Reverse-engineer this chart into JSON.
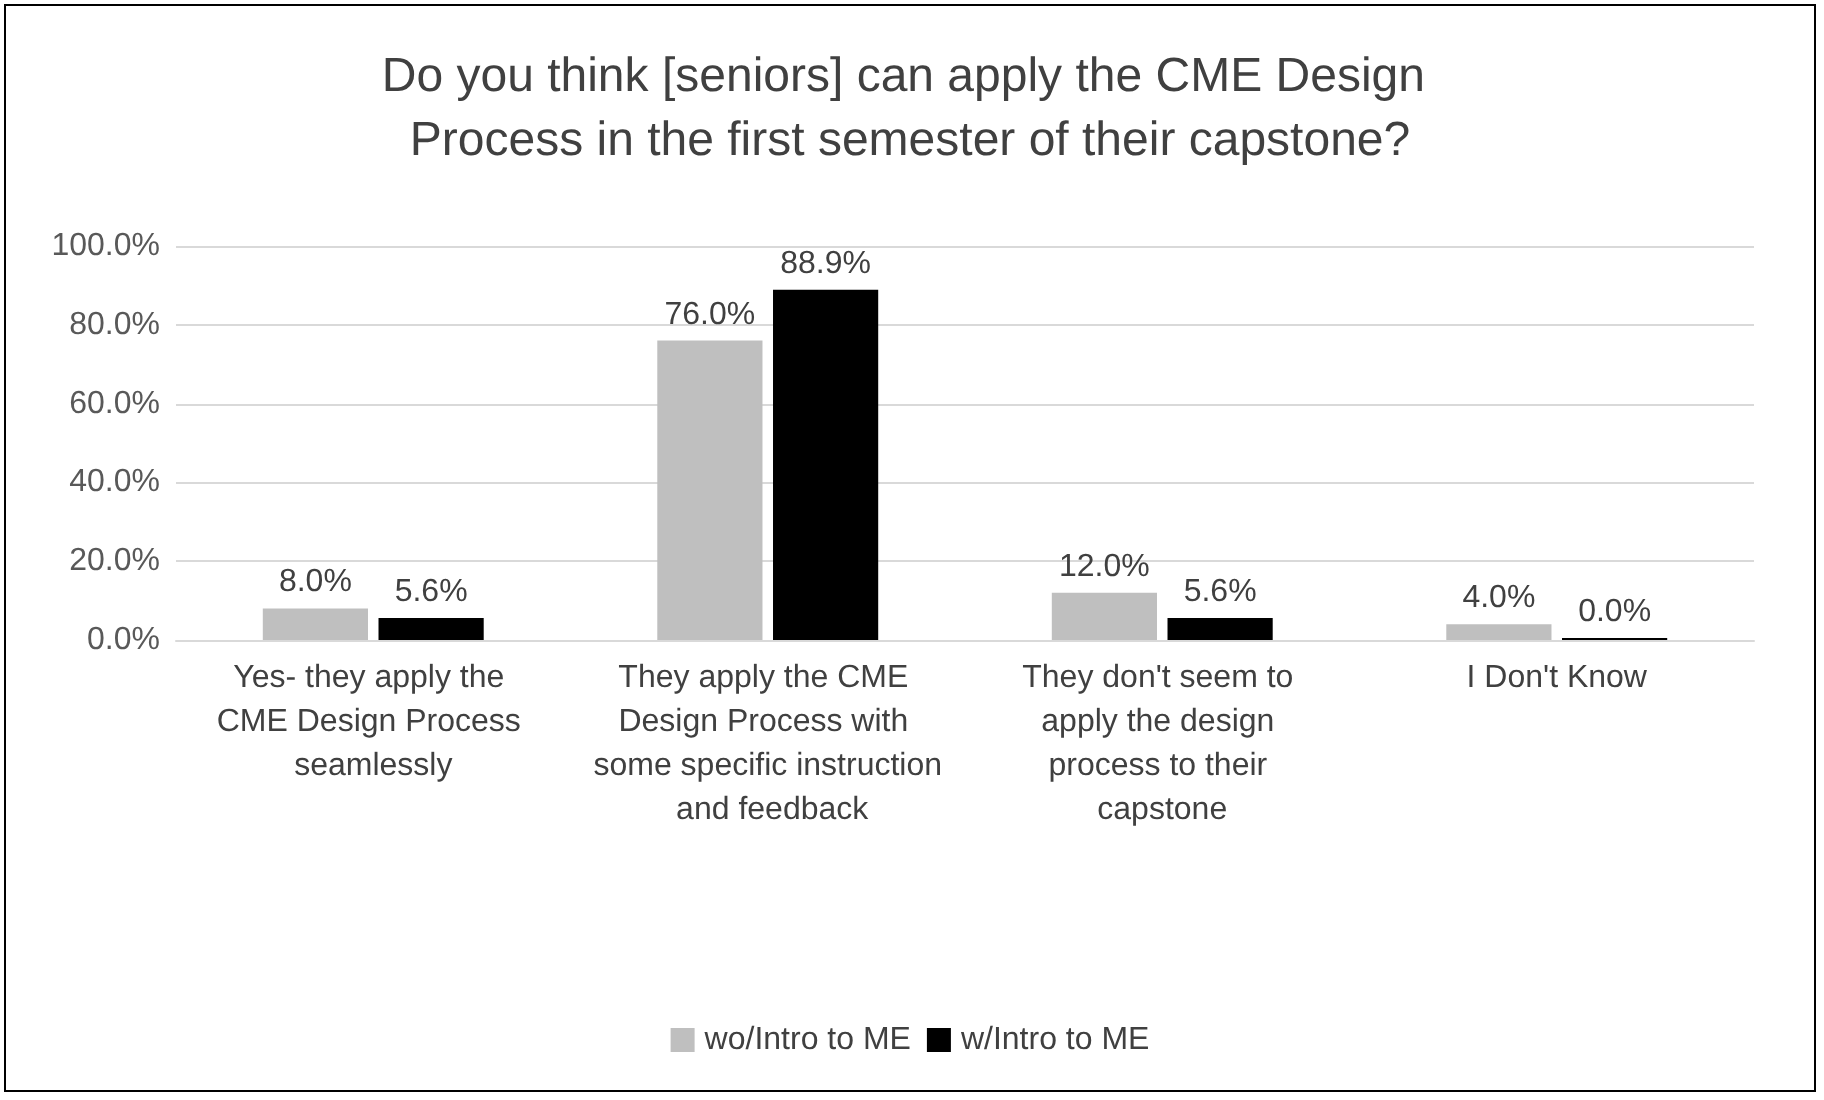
{
  "chart_data": {
    "type": "bar",
    "title": "Do you think [seniors] can apply the CME Design Process in the first semester of their capstone?",
    "categories": [
      "Yes- they apply the CME Design Process seamlessly",
      "They apply the CME Design Process with some specific instruction and feedback",
      "They don't seem to apply the design process to their capstone",
      "I Don't Know"
    ],
    "series": [
      {
        "name": "wo/Intro to ME",
        "color": "#bfbfbf",
        "values": [
          8.0,
          76.0,
          12.0,
          4.0
        ],
        "value_labels": [
          "8.0%",
          "76.0%",
          "12.0%",
          "4.0%"
        ]
      },
      {
        "name": "w/Intro to ME",
        "color": "#000000",
        "values": [
          5.6,
          88.9,
          5.6,
          0.0
        ],
        "value_labels": [
          "5.6%",
          "88.9%",
          "5.6%",
          "0.0%"
        ]
      }
    ],
    "ylim": [
      0,
      100
    ],
    "yticks": [
      {
        "value": 0,
        "label": "0.0%"
      },
      {
        "value": 20,
        "label": "20.0%"
      },
      {
        "value": 40,
        "label": "40.0%"
      },
      {
        "value": 60,
        "label": "60.0%"
      },
      {
        "value": 80,
        "label": "80.0%"
      },
      {
        "value": 100,
        "label": "100.0%"
      }
    ],
    "grid": true,
    "legend": "bottom"
  }
}
